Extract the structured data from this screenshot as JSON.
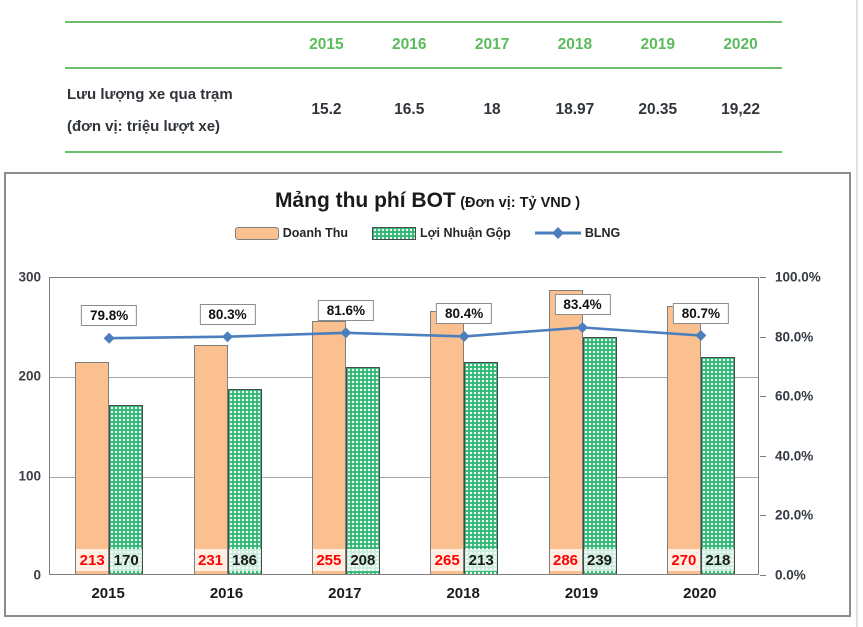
{
  "traffic_table": {
    "row_label_line1": "Lưu lượng xe qua trạm",
    "row_label_line2": "(đơn vị: triệu lượt xe)",
    "years": [
      "2015",
      "2016",
      "2017",
      "2018",
      "2019",
      "2020"
    ],
    "values": [
      "15.2",
      "16.5",
      "18",
      "18.97",
      "20.35",
      "19,22"
    ],
    "line_color": "#6DBE6D",
    "header_text_color": "#5CBB5C",
    "value_text_color": "#30343B"
  },
  "chart": {
    "title": "Mảng thu phí BOT",
    "title_unit": "(Đơn vị: Tỷ VND )",
    "legend": [
      {
        "label": "Doanh Thu",
        "swatch": "bar",
        "color": "#FAC090"
      },
      {
        "label": "Lợi Nhuận Gộp",
        "swatch": "pattern-bar",
        "color": "#2FB673"
      },
      {
        "label": "BLNG",
        "swatch": "line-diamond",
        "color": "#4A7EBD"
      }
    ]
  },
  "chart_data": [
    {
      "type": "table",
      "title": "Lưu lượng xe qua trạm (đơn vị: triệu lượt xe)",
      "categories": [
        "2015",
        "2016",
        "2017",
        "2018",
        "2019",
        "2020"
      ],
      "values": [
        15.2,
        16.5,
        18,
        18.97,
        20.35,
        19.22
      ],
      "values_display": [
        "15.2",
        "16.5",
        "18",
        "18.97",
        "20.35",
        "19,22"
      ]
    },
    {
      "type": "bar",
      "subtype": "grouped bars with line, dual axis",
      "title": "Mảng thu phí BOT (Đơn vị: Tỷ VND )",
      "categories": [
        "2015",
        "2016",
        "2017",
        "2018",
        "2019",
        "2020"
      ],
      "series": [
        {
          "name": "Doanh Thu",
          "type": "bar",
          "axis": "left",
          "values": [
            213,
            231,
            255,
            265,
            286,
            270
          ],
          "color": "#FAC090",
          "label_color": "#FF0000"
        },
        {
          "name": "Lợi Nhuận Gộp",
          "type": "bar",
          "axis": "left",
          "values": [
            170,
            186,
            208,
            213,
            239,
            218
          ],
          "color": "#2FB673",
          "label_color": "#1A1A1A"
        },
        {
          "name": "BLNG",
          "type": "line",
          "axis": "right",
          "values": [
            79.8,
            80.3,
            81.6,
            80.4,
            83.4,
            80.7
          ],
          "labels": [
            "79.8%",
            "80.3%",
            "81.6%",
            "80.4%",
            "83.4%",
            "80.7%"
          ],
          "color": "#4A7EBD"
        }
      ],
      "left_axis": {
        "ticks": [
          "0",
          "100",
          "200",
          "300"
        ],
        "min": 0,
        "max": 300
      },
      "right_axis": {
        "ticks": [
          "0.0%",
          "20.0%",
          "40.0%",
          "60.0%",
          "80.0%",
          "100.0%"
        ],
        "min": 0,
        "max": 100
      },
      "grid": "horizontal gridlines at left-axis ticks",
      "legend_position": "top"
    }
  ]
}
